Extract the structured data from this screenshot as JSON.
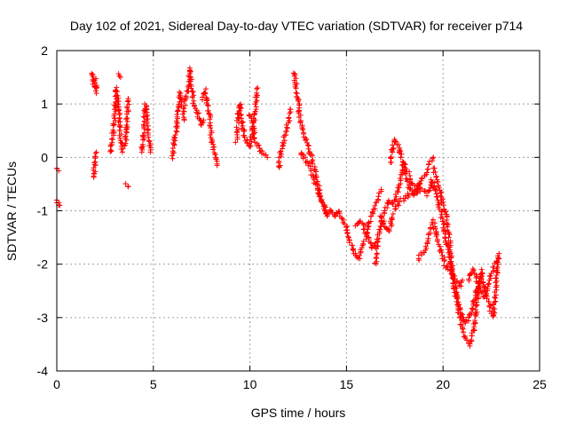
{
  "chart_data": {
    "type": "scatter",
    "title": "Day 102 of 2021, Sidereal Day-to-day VTEC variation (SDTVAR) for receiver p714",
    "xlabel": "GPS time / hours",
    "ylabel": "SDTVAR / TECUs",
    "xlim": [
      0,
      25
    ],
    "ylim": [
      -4,
      2
    ],
    "xticks": [
      0,
      5,
      10,
      15,
      20,
      25
    ],
    "yticks": [
      -4,
      -3,
      -2,
      -1,
      0,
      1,
      2
    ],
    "xtick_labels": [
      "0",
      "5",
      "10",
      "15",
      "20",
      "25"
    ],
    "ytick_labels": [
      "-4",
      "-3",
      "-2",
      "-1",
      "0",
      "1",
      "2"
    ],
    "grid": true,
    "marker": "plus",
    "series": [
      {
        "name": "SDTVAR",
        "color": "#ff0000",
        "tracks": [
          [
            [
              0.0,
              -0.2
            ],
            [
              0.1,
              -0.25
            ]
          ],
          [
            [
              0.0,
              -0.8
            ],
            [
              0.1,
              -0.85
            ],
            [
              0.15,
              -0.9
            ]
          ],
          [
            [
              1.9,
              -0.4
            ],
            [
              1.95,
              -0.2
            ],
            [
              2.0,
              0.0
            ],
            [
              2.05,
              0.1
            ]
          ],
          [
            [
              1.85,
              1.6
            ],
            [
              1.9,
              1.4
            ],
            [
              1.95,
              1.3
            ],
            [
              2.0,
              1.45
            ],
            [
              2.05,
              1.2
            ]
          ],
          [
            [
              2.8,
              0.1
            ],
            [
              2.9,
              0.4
            ],
            [
              3.0,
              0.7
            ],
            [
              3.05,
              1.0
            ],
            [
              3.1,
              1.3
            ],
            [
              3.2,
              0.9
            ],
            [
              3.3,
              0.4
            ],
            [
              3.4,
              0.1
            ]
          ],
          [
            [
              3.2,
              1.55
            ],
            [
              3.3,
              1.5
            ]
          ],
          [
            [
              3.55,
              0.2
            ],
            [
              3.6,
              0.5
            ],
            [
              3.65,
              0.8
            ],
            [
              3.7,
              1.1
            ]
          ],
          [
            [
              3.6,
              -0.5
            ],
            [
              3.7,
              -0.55
            ]
          ],
          [
            [
              4.4,
              0.1
            ],
            [
              4.5,
              0.4
            ],
            [
              4.55,
              0.8
            ],
            [
              4.6,
              1.0
            ],
            [
              4.7,
              0.7
            ],
            [
              4.8,
              0.3
            ],
            [
              4.85,
              0.1
            ]
          ],
          [
            [
              6.0,
              0.0
            ],
            [
              6.1,
              0.3
            ],
            [
              6.2,
              0.6
            ],
            [
              6.3,
              0.9
            ],
            [
              6.4,
              1.2
            ],
            [
              6.5,
              1.0
            ],
            [
              6.6,
              0.7
            ]
          ],
          [
            [
              6.6,
              1.0
            ],
            [
              6.8,
              1.3
            ],
            [
              6.9,
              1.65
            ],
            [
              7.0,
              1.3
            ],
            [
              7.1,
              1.0
            ],
            [
              7.3,
              0.8
            ],
            [
              7.5,
              0.6
            ],
            [
              7.6,
              0.7
            ]
          ],
          [
            [
              7.5,
              1.1
            ],
            [
              7.7,
              1.25
            ],
            [
              7.8,
              1.0
            ],
            [
              7.9,
              0.8
            ],
            [
              8.0,
              0.4
            ],
            [
              8.1,
              0.2
            ],
            [
              8.2,
              0.0
            ],
            [
              8.3,
              -0.15
            ]
          ],
          [
            [
              9.3,
              0.3
            ],
            [
              9.4,
              0.8
            ],
            [
              9.5,
              1.0
            ],
            [
              9.6,
              0.6
            ],
            [
              9.8,
              0.3
            ],
            [
              10.0,
              0.2
            ],
            [
              10.2,
              0.6
            ],
            [
              10.3,
              1.0
            ],
            [
              10.4,
              1.3
            ]
          ],
          [
            [
              10.0,
              0.8
            ],
            [
              10.1,
              0.6
            ],
            [
              10.3,
              0.3
            ],
            [
              10.6,
              0.1
            ],
            [
              10.9,
              0.0
            ]
          ],
          [
            [
              11.5,
              -0.2
            ],
            [
              11.6,
              0.1
            ],
            [
              11.8,
              0.4
            ],
            [
              12.0,
              0.7
            ],
            [
              12.1,
              0.9
            ]
          ],
          [
            [
              12.3,
              1.6
            ],
            [
              12.4,
              1.3
            ],
            [
              12.5,
              1.0
            ],
            [
              12.6,
              0.7
            ],
            [
              12.8,
              0.4
            ],
            [
              13.0,
              0.2
            ],
            [
              13.2,
              0.0
            ],
            [
              13.4,
              -0.3
            ],
            [
              13.6,
              -0.6
            ],
            [
              13.8,
              -0.9
            ],
            [
              14.0,
              -1.1
            ],
            [
              14.2,
              -1.0
            ],
            [
              14.4,
              -1.1
            ]
          ],
          [
            [
              12.6,
              0.1
            ],
            [
              12.8,
              0.0
            ],
            [
              13.0,
              -0.1
            ],
            [
              13.2,
              -0.3
            ],
            [
              13.4,
              -0.5
            ],
            [
              13.6,
              -0.7
            ],
            [
              13.8,
              -0.9
            ],
            [
              14.0,
              -1.1
            ]
          ],
          [
            [
              14.4,
              -1.1
            ],
            [
              14.6,
              -1.0
            ],
            [
              14.8,
              -1.2
            ],
            [
              15.0,
              -1.3
            ],
            [
              15.2,
              -1.6
            ],
            [
              15.4,
              -1.8
            ],
            [
              15.6,
              -1.9
            ],
            [
              15.8,
              -1.7
            ],
            [
              16.0,
              -1.5
            ],
            [
              16.2,
              -1.2
            ],
            [
              16.4,
              -1.0
            ],
            [
              16.6,
              -0.8
            ],
            [
              16.8,
              -0.6
            ]
          ],
          [
            [
              15.5,
              -1.3
            ],
            [
              15.7,
              -1.2
            ],
            [
              15.9,
              -1.3
            ],
            [
              16.1,
              -1.5
            ],
            [
              16.3,
              -1.7
            ],
            [
              16.5,
              -1.6
            ]
          ],
          [
            [
              16.5,
              -2.0
            ],
            [
              16.6,
              -1.6
            ],
            [
              16.8,
              -1.2
            ],
            [
              17.0,
              -1.0
            ],
            [
              17.2,
              -0.8
            ],
            [
              17.4,
              -0.9
            ],
            [
              17.6,
              -0.7
            ],
            [
              17.8,
              -0.4
            ],
            [
              18.0,
              -0.1
            ],
            [
              18.2,
              -0.3
            ],
            [
              18.4,
              -0.5
            ],
            [
              18.6,
              -0.6
            ],
            [
              18.8,
              -0.5
            ]
          ],
          [
            [
              17.3,
              -0.1
            ],
            [
              17.4,
              0.2
            ],
            [
              17.5,
              0.35
            ],
            [
              17.7,
              0.2
            ],
            [
              17.9,
              -0.1
            ],
            [
              18.1,
              -0.4
            ],
            [
              18.3,
              -0.6
            ],
            [
              18.5,
              -0.7
            ],
            [
              18.7,
              -0.6
            ],
            [
              18.9,
              -0.4
            ],
            [
              19.1,
              -0.3
            ],
            [
              19.3,
              -0.1
            ],
            [
              19.5,
              0.0
            ]
          ],
          [
            [
              16.8,
              -1.1
            ],
            [
              17.0,
              -1.3
            ],
            [
              17.2,
              -1.4
            ],
            [
              17.4,
              -1.1
            ],
            [
              17.6,
              -0.9
            ],
            [
              17.8,
              -0.8
            ],
            [
              18.0,
              -0.8
            ],
            [
              18.2,
              -0.7
            ],
            [
              18.4,
              -0.7
            ],
            [
              18.6,
              -0.7
            ],
            [
              18.8,
              -0.6
            ],
            [
              19.0,
              -0.6
            ],
            [
              19.2,
              -0.7
            ],
            [
              19.4,
              -0.5
            ],
            [
              19.6,
              -0.6
            ]
          ],
          [
            [
              18.7,
              -1.9
            ],
            [
              18.9,
              -1.8
            ],
            [
              19.1,
              -1.7
            ],
            [
              19.3,
              -1.4
            ],
            [
              19.5,
              -1.2
            ],
            [
              19.7,
              -1.5
            ],
            [
              19.9,
              -1.8
            ],
            [
              20.1,
              -2.0
            ],
            [
              20.3,
              -2.1
            ],
            [
              20.5,
              -2.2
            ],
            [
              20.7,
              -2.3
            ],
            [
              20.9,
              -2.4
            ],
            [
              21.0,
              -2.3
            ]
          ],
          [
            [
              19.5,
              -0.2
            ],
            [
              19.7,
              -0.4
            ],
            [
              19.9,
              -0.7
            ],
            [
              20.1,
              -1.0
            ],
            [
              20.3,
              -1.4
            ],
            [
              20.4,
              -1.8
            ],
            [
              20.5,
              -2.2
            ],
            [
              20.6,
              -2.5
            ],
            [
              20.8,
              -2.9
            ],
            [
              21.0,
              -3.2
            ],
            [
              21.2,
              -3.4
            ],
            [
              21.4,
              -3.5
            ],
            [
              21.6,
              -3.2
            ],
            [
              21.7,
              -2.9
            ],
            [
              21.8,
              -2.6
            ],
            [
              21.9,
              -2.3
            ],
            [
              22.0,
              -2.1
            ]
          ],
          [
            [
              19.4,
              -0.4
            ],
            [
              19.6,
              -0.6
            ],
            [
              19.8,
              -0.9
            ],
            [
              20.0,
              -1.2
            ],
            [
              20.2,
              -1.6
            ],
            [
              20.4,
              -2.0
            ],
            [
              20.6,
              -2.4
            ],
            [
              20.8,
              -2.7
            ],
            [
              21.0,
              -3.0
            ],
            [
              21.2,
              -3.1
            ],
            [
              21.4,
              -3.0
            ],
            [
              21.6,
              -2.7
            ],
            [
              21.8,
              -2.4
            ],
            [
              22.0,
              -2.2
            ],
            [
              22.2,
              -2.5
            ],
            [
              22.4,
              -2.8
            ],
            [
              22.6,
              -3.0
            ],
            [
              22.7,
              -2.6
            ],
            [
              22.8,
              -2.1
            ],
            [
              22.9,
              -1.8
            ]
          ],
          [
            [
              21.3,
              -2.3
            ],
            [
              21.5,
              -2.1
            ],
            [
              21.7,
              -2.2
            ],
            [
              21.9,
              -2.5
            ],
            [
              22.1,
              -2.6
            ],
            [
              22.3,
              -2.4
            ],
            [
              22.5,
              -2.2
            ],
            [
              22.7,
              -2.0
            ],
            [
              22.9,
              -1.9
            ]
          ]
        ]
      }
    ]
  }
}
